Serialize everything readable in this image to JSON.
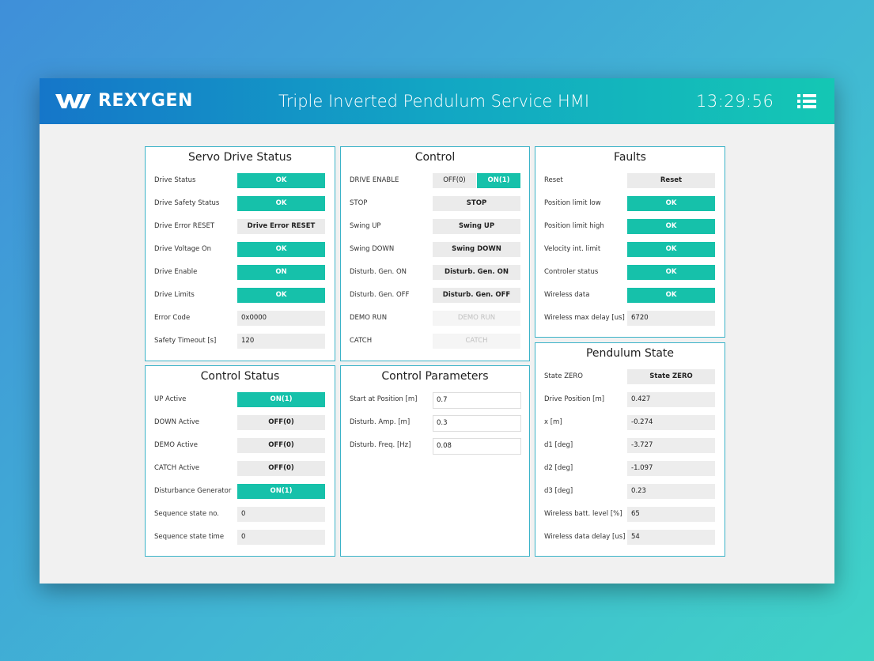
{
  "header": {
    "logo": "REXYGEN",
    "title": "Triple Inverted Pendulum Service HMI",
    "time": "13:29:56"
  },
  "panels": [
    {
      "title": "Servo Drive Status",
      "rows": [
        {
          "label": "Drive Status",
          "value": "OK"
        },
        {
          "label": "Drive Safety Status",
          "value": "OK"
        },
        {
          "label": "Drive Error RESET",
          "value": "Drive Error RESET"
        },
        {
          "label": "Drive Voltage On",
          "value": "OK"
        },
        {
          "label": "Drive Enable",
          "value": "ON"
        },
        {
          "label": "Drive Limits",
          "value": "OK"
        },
        {
          "label": "Error Code",
          "value": "0x0000"
        },
        {
          "label": "Safety Timeout [s]",
          "value": "120"
        }
      ]
    },
    {
      "title": "Control",
      "rows": [
        {
          "label": "DRIVE ENABLE",
          "value": [
            "OFF(0)",
            "ON(1)"
          ]
        },
        {
          "label": "STOP",
          "value": "STOP"
        },
        {
          "label": "Swing UP",
          "value": "Swing UP"
        },
        {
          "label": "Swing DOWN",
          "value": "Swing DOWN"
        },
        {
          "label": "Disturb. Gen. ON",
          "value": "Disturb. Gen. ON"
        },
        {
          "label": "Disturb. Gen. OFF",
          "value": "Disturb. Gen. OFF"
        },
        {
          "label": "DEMO RUN",
          "value": "DEMO RUN"
        },
        {
          "label": "CATCH",
          "value": "CATCH"
        }
      ]
    },
    {
      "title": "Faults",
      "rows": [
        {
          "label": "Reset",
          "value": "Reset"
        },
        {
          "label": "Position limit low",
          "value": "OK"
        },
        {
          "label": "Position limit high",
          "value": "OK"
        },
        {
          "label": "Velocity int. limit",
          "value": "OK"
        },
        {
          "label": "Controler status",
          "value": "OK"
        },
        {
          "label": "Wireless data",
          "value": "OK"
        },
        {
          "label": "Wireless max delay [us]",
          "value": "6720"
        }
      ]
    },
    {
      "title": "Control Status",
      "rows": [
        {
          "label": "UP Active",
          "value": "ON(1)"
        },
        {
          "label": "DOWN Active",
          "value": "OFF(0)"
        },
        {
          "label": "DEMO Active",
          "value": "OFF(0)"
        },
        {
          "label": "CATCH Active",
          "value": "OFF(0)"
        },
        {
          "label": "Disturbance Generator",
          "value": "ON(1)"
        },
        {
          "label": "Sequence state no.",
          "value": "0"
        },
        {
          "label": "Sequence state time",
          "value": "0"
        }
      ]
    },
    {
      "title": "Control Parameters",
      "rows": [
        {
          "label": "Start at Position [m]",
          "value": "0.7"
        },
        {
          "label": "Disturb. Amp. [m]",
          "value": "0.3"
        },
        {
          "label": "Disturb. Freq. [Hz]",
          "value": "0.08"
        }
      ]
    },
    {
      "title": "Pendulum State",
      "rows": [
        {
          "label": "State ZERO",
          "value": "State ZERO"
        },
        {
          "label": "Drive Position [m]",
          "value": "0.427"
        },
        {
          "label": "x [m]",
          "value": "-0.274"
        },
        {
          "label": "d1 [deg]",
          "value": "-3.727"
        },
        {
          "label": "d2 [deg]",
          "value": "-1.097"
        },
        {
          "label": "d3 [deg]",
          "value": "0.23"
        },
        {
          "label": "Wireless batt. level [%]",
          "value": "65"
        },
        {
          "label": "Wireless data delay [us]",
          "value": "54"
        }
      ]
    }
  ]
}
